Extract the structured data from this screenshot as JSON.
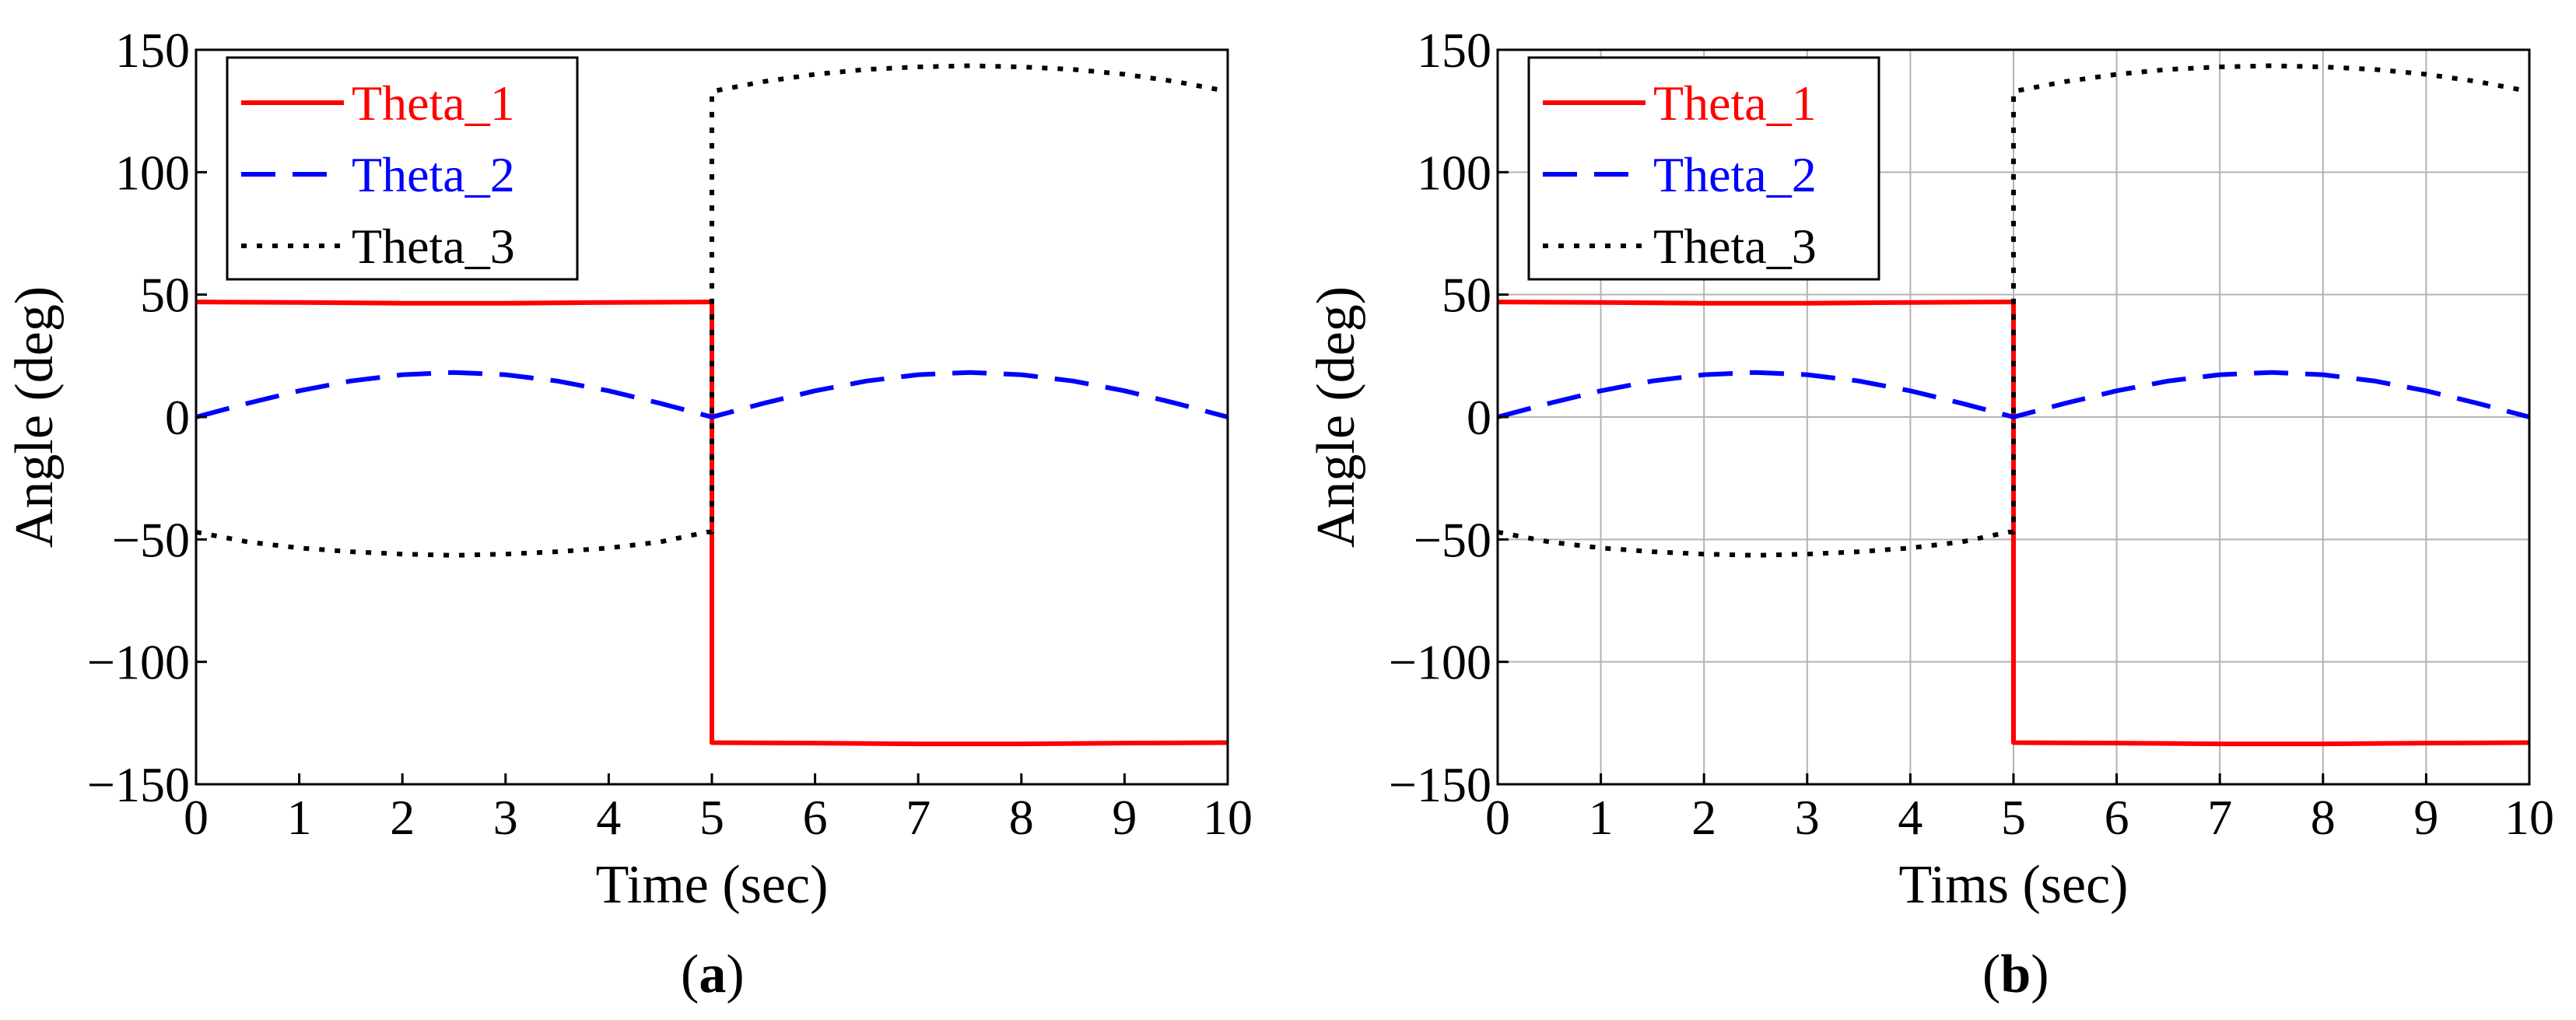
{
  "chart_data": [
    {
      "type": "line",
      "panel_label": "a",
      "xlabel": "Time (sec)",
      "ylabel": "Angle (deg)",
      "grid": false,
      "xlim": [
        0,
        10
      ],
      "ylim": [
        -150,
        150
      ],
      "xticks": [
        0,
        1,
        2,
        3,
        4,
        5,
        6,
        7,
        8,
        9,
        10
      ],
      "yticks": [
        150,
        100,
        50,
        0,
        -50,
        -100,
        -150
      ],
      "ytick_labels": [
        "150",
        "100",
        "50",
        "0",
        "−50",
        "−100",
        "−150"
      ],
      "legend_position": "top-left",
      "series": [
        {
          "name": "Theta_1",
          "color": "#ff0000",
          "style": "solid",
          "x": [
            0,
            1,
            2,
            3,
            4,
            4.95,
            4.95,
            5,
            5,
            6,
            7,
            8,
            9,
            10
          ],
          "y": [
            47,
            46.8,
            46.5,
            46.5,
            46.8,
            47,
            47,
            47,
            -133,
            -133.2,
            -133.5,
            -133.5,
            -133.2,
            -133
          ]
        },
        {
          "name": "Theta_2",
          "color": "#0000ff",
          "style": "dashed",
          "x": [
            0,
            0.5,
            1,
            1.5,
            2,
            2.5,
            3,
            3.5,
            4,
            4.5,
            5,
            5.5,
            6,
            6.5,
            7,
            7.5,
            8,
            8.5,
            9,
            9.5,
            10
          ],
          "y": [
            0,
            5.6,
            10.7,
            14.7,
            17.3,
            18.2,
            17.3,
            14.7,
            10.7,
            5.6,
            0,
            5.6,
            10.7,
            14.7,
            17.3,
            18.2,
            17.3,
            14.7,
            10.7,
            5.6,
            0
          ]
        },
        {
          "name": "Theta_3",
          "color": "#000000",
          "style": "dotted",
          "x": [
            0,
            0.5,
            1,
            1.5,
            2,
            2.5,
            3,
            3.5,
            4,
            4.5,
            4.95,
            5,
            5,
            5.5,
            6,
            6.5,
            7,
            7.5,
            8,
            8.5,
            9,
            9.5,
            10
          ],
          "y": [
            -47,
            -51,
            -53.5,
            -55,
            -56,
            -56.5,
            -56,
            -55,
            -53.5,
            -51,
            -47,
            -47,
            133,
            137,
            140,
            142,
            143,
            143.5,
            143,
            142,
            140,
            137,
            133
          ]
        }
      ]
    },
    {
      "type": "line",
      "panel_label": "b",
      "xlabel": "Tims (sec)",
      "ylabel": "Angle (deg)",
      "grid": true,
      "xlim": [
        0,
        10
      ],
      "ylim": [
        -150,
        150
      ],
      "xticks": [
        0,
        1,
        2,
        3,
        4,
        5,
        6,
        7,
        8,
        9,
        10
      ],
      "yticks": [
        150,
        100,
        50,
        0,
        -50,
        -100,
        -150
      ],
      "ytick_labels": [
        "150",
        "100",
        "50",
        "0",
        "−50",
        "−100",
        "−150"
      ],
      "legend_position": "top-left",
      "series": [
        {
          "name": "Theta_1",
          "color": "#ff0000",
          "style": "solid",
          "x": [
            0,
            1,
            2,
            3,
            4,
            4.95,
            4.95,
            5,
            5,
            6,
            7,
            8,
            9,
            10
          ],
          "y": [
            47,
            46.8,
            46.5,
            46.5,
            46.8,
            47,
            47,
            47,
            -133,
            -133.2,
            -133.5,
            -133.5,
            -133.2,
            -133
          ]
        },
        {
          "name": "Theta_2",
          "color": "#0000ff",
          "style": "dashed",
          "x": [
            0,
            0.5,
            1,
            1.5,
            2,
            2.5,
            3,
            3.5,
            4,
            4.5,
            5,
            5.5,
            6,
            6.5,
            7,
            7.5,
            8,
            8.5,
            9,
            9.5,
            10
          ],
          "y": [
            0,
            5.6,
            10.7,
            14.7,
            17.3,
            18.2,
            17.3,
            14.7,
            10.7,
            5.6,
            0,
            5.6,
            10.7,
            14.7,
            17.3,
            18.2,
            17.3,
            14.7,
            10.7,
            5.6,
            0
          ]
        },
        {
          "name": "Theta_3",
          "color": "#000000",
          "style": "dotted",
          "x": [
            0,
            0.5,
            1,
            1.5,
            2,
            2.5,
            3,
            3.5,
            4,
            4.5,
            4.95,
            5,
            5,
            5.5,
            6,
            6.5,
            7,
            7.5,
            8,
            8.5,
            9,
            9.5,
            10
          ],
          "y": [
            -47,
            -51,
            -53.5,
            -55,
            -56,
            -56.5,
            -56,
            -55,
            -53.5,
            -51,
            -47,
            -47,
            133,
            137,
            140,
            142,
            143,
            143.5,
            143,
            142,
            140,
            137,
            133
          ]
        }
      ]
    }
  ]
}
